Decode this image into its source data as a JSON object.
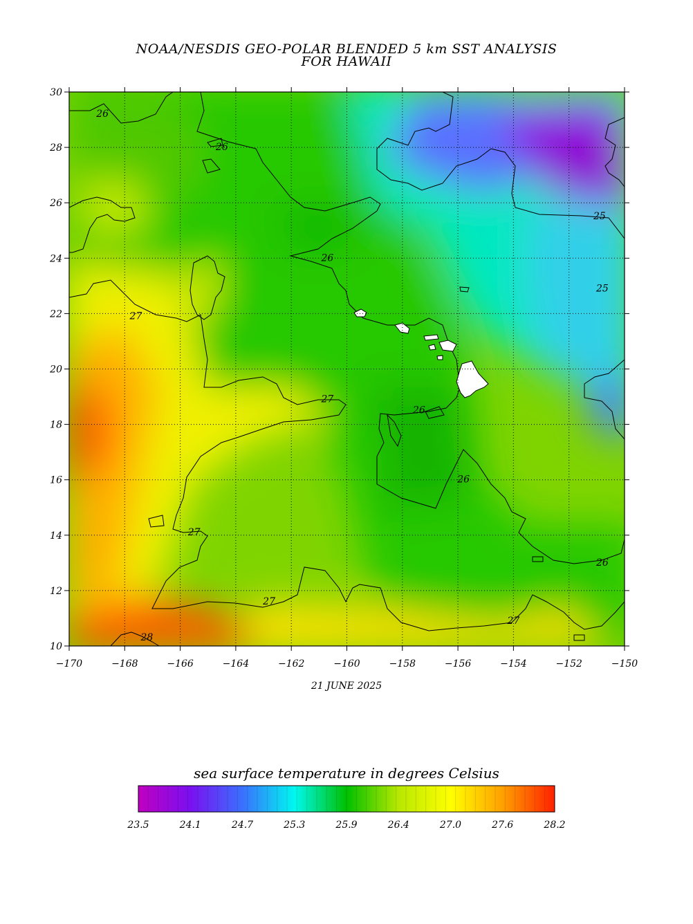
{
  "title_line1": "NOAA/NESDIS GEO-POLAR BLENDED 5 km SST ANALYSIS",
  "title_line2": "FOR HAWAII",
  "date": "21 JUNE 2025",
  "colorbar_title": "sea surface temperature in degrees Celsius",
  "colorbar_ticks": [
    "23.5",
    "24.1",
    "24.7",
    "25.3",
    "25.9",
    "26.4",
    "27.0",
    "27.6",
    "28.2"
  ],
  "colorbar_colors": [
    "#c000c0",
    "#7a10f0",
    "#3a70ff",
    "#00f8f0",
    "#00c000",
    "#b8e800",
    "#ffff00",
    "#ffa000",
    "#ff2000"
  ],
  "map": {
    "lon_range": [
      -170,
      -150
    ],
    "lat_range": [
      10,
      30
    ],
    "x_ticks": [
      "-170",
      "-168",
      "-166",
      "-164",
      "-162",
      "-160",
      "-158",
      "-156",
      "-154",
      "-152",
      "-150"
    ],
    "y_ticks": [
      "10",
      "12",
      "14",
      "16",
      "18",
      "20",
      "22",
      "24",
      "26",
      "28",
      "30"
    ],
    "grid": "dotted",
    "contour_labels": [
      {
        "text": "26",
        "lon": -168.8,
        "lat": 29.1
      },
      {
        "text": "26",
        "lon": -164.5,
        "lat": 27.9
      },
      {
        "text": "26",
        "lon": -160.7,
        "lat": 23.9
      },
      {
        "text": "26",
        "lon": -157.4,
        "lat": 18.4
      },
      {
        "text": "26",
        "lon": -155.8,
        "lat": 15.9
      },
      {
        "text": "26",
        "lon": -150.8,
        "lat": 12.9
      },
      {
        "text": "25",
        "lon": -150.9,
        "lat": 25.4
      },
      {
        "text": "25",
        "lon": -150.8,
        "lat": 22.8
      },
      {
        "text": "27",
        "lon": -167.6,
        "lat": 21.8
      },
      {
        "text": "27",
        "lon": -160.7,
        "lat": 18.8
      },
      {
        "text": "27",
        "lon": -165.5,
        "lat": 14.0
      },
      {
        "text": "27",
        "lon": -162.8,
        "lat": 11.5
      },
      {
        "text": "27",
        "lon": -154.0,
        "lat": 10.8
      },
      {
        "text": "28",
        "lon": -167.2,
        "lat": 10.2
      }
    ],
    "islands": [
      "Kauai",
      "Oahu",
      "Molokai",
      "Maui",
      "Lanai",
      "Kahoolawe",
      "Hawaii"
    ]
  }
}
